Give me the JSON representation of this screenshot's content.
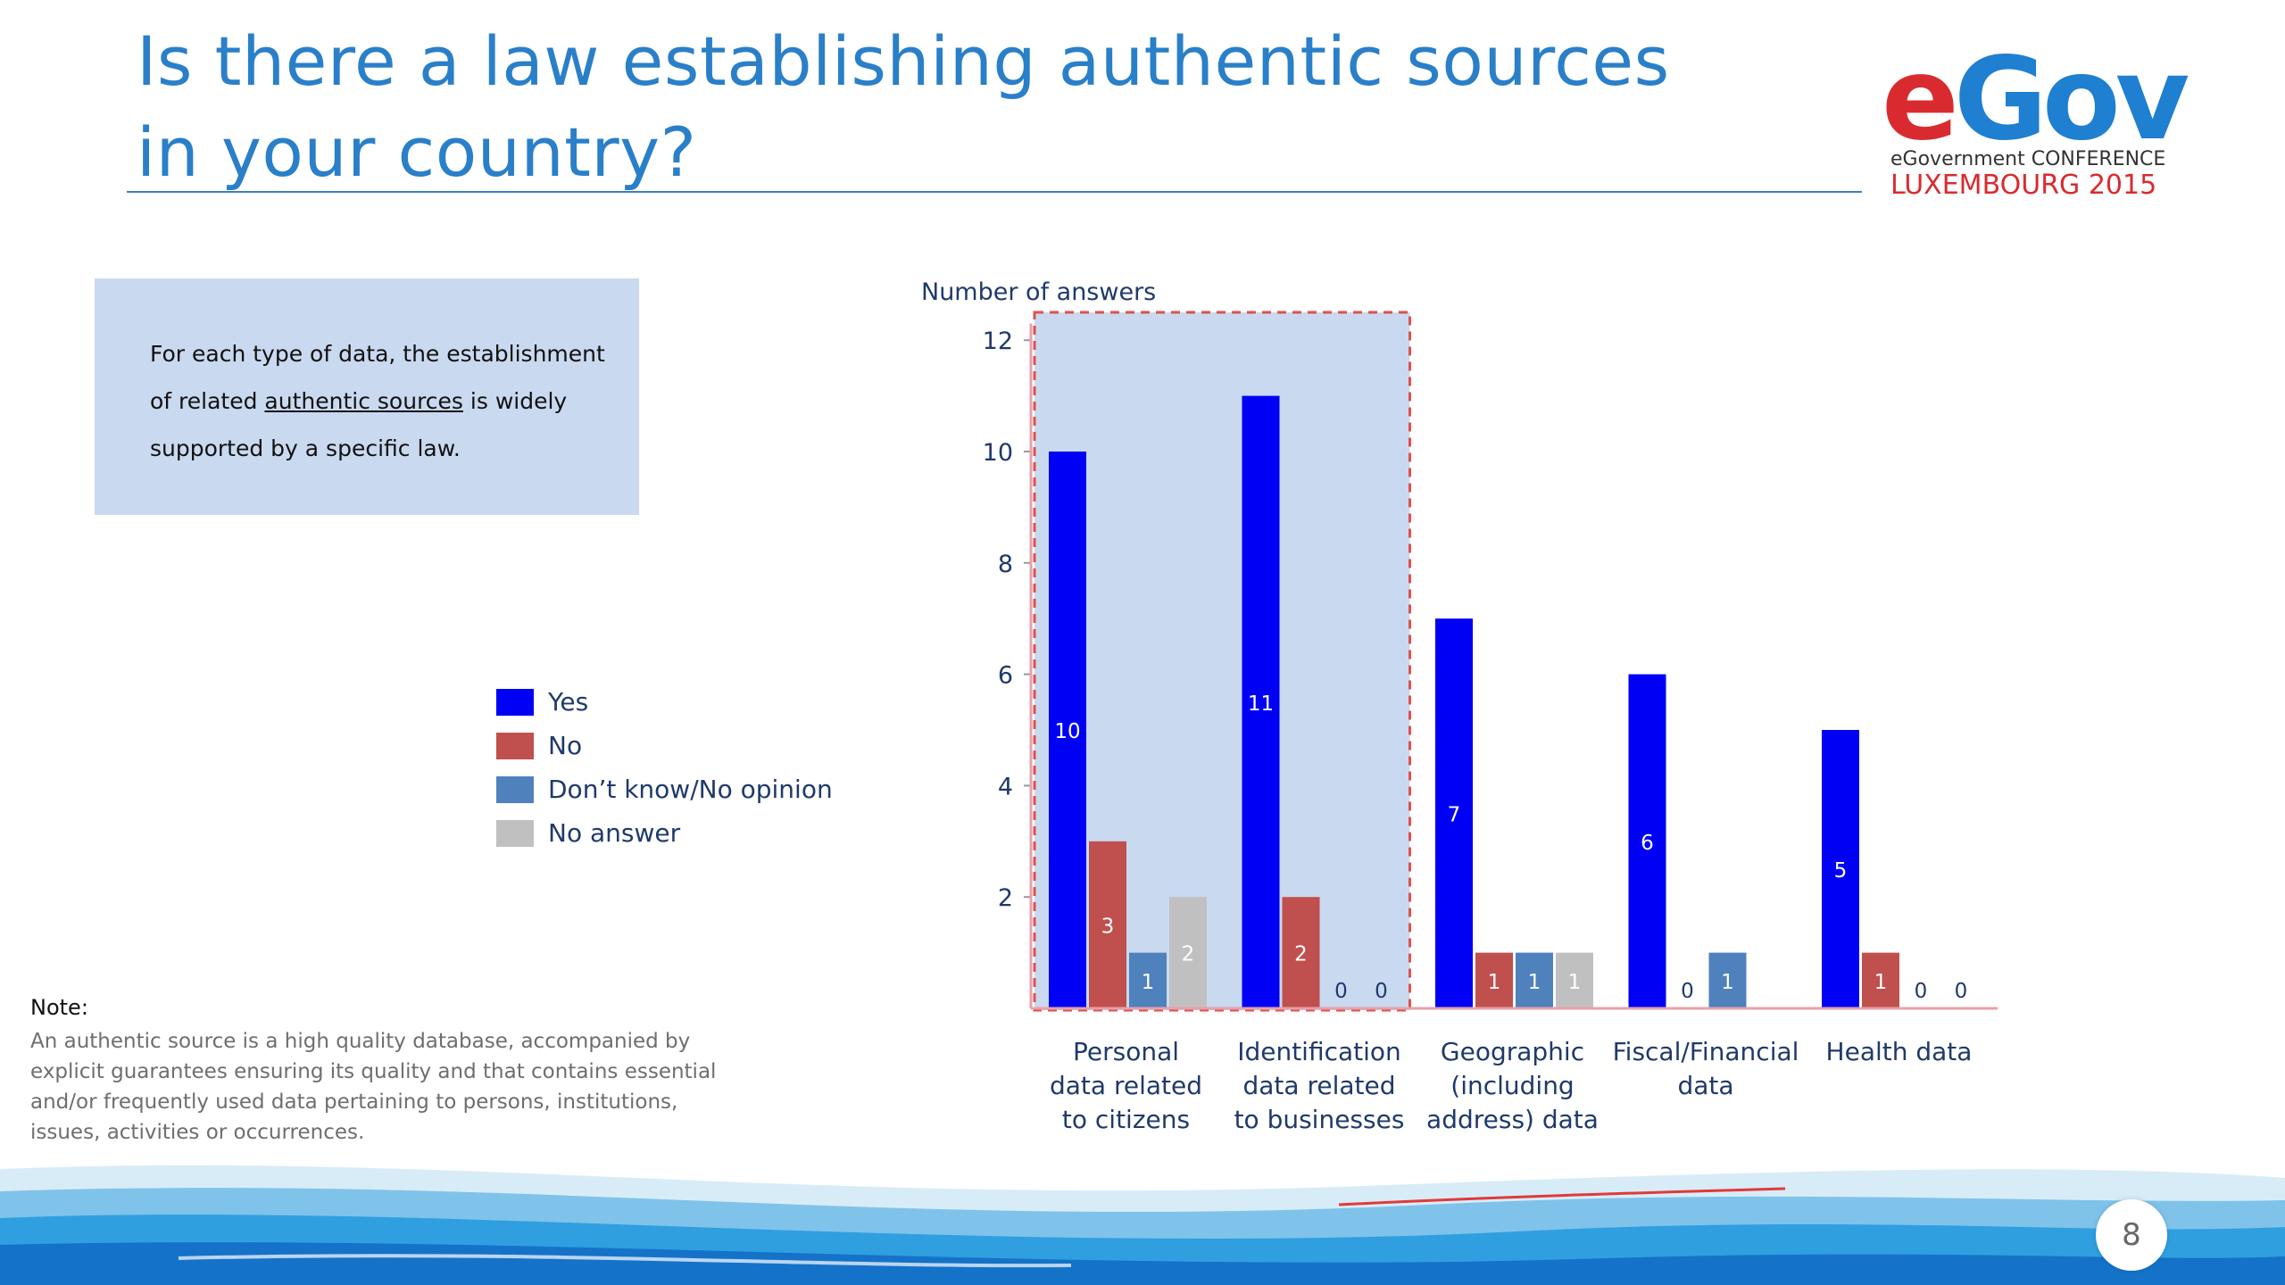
{
  "slide": {
    "title_line1": "Is there a law establishing authentic sources",
    "title_line2": "in your country?",
    "page_number": "8"
  },
  "logo": {
    "e": "e",
    "gov": "Gov",
    "subtitle": "eGovernment CONFERENCE",
    "event": "LUXEMBOURG 2015"
  },
  "info_box": {
    "text_before": "For each type of  data, the establishment of related ",
    "text_link": "authentic sources",
    "text_after": " is widely supported by a specific law."
  },
  "note": {
    "heading": "Note:",
    "text": "An authentic source is a high quality database, accompanied by explicit guarantees ensuring its quality  and that contains essential and/or frequently used data pertaining to persons, institutions, issues, activities or occurrences."
  },
  "colors": {
    "yes": "#0000f5",
    "no": "#c0504d",
    "dont_know": "#4f81bd",
    "no_answer": "#c0c0c0",
    "highlight_fill": "#c9d9f0",
    "highlight_border": "#e05050",
    "axis": "#e8a0a8"
  },
  "chart_data": {
    "type": "bar",
    "ylabel": "Number of answers",
    "ylim": [
      0,
      12
    ],
    "yticks": [
      2,
      4,
      6,
      8,
      10,
      12
    ],
    "legend_position": "left",
    "categories": [
      [
        "Personal",
        "data related",
        "to citizens"
      ],
      [
        "Identification",
        "data related",
        "to businesses"
      ],
      [
        "Geographic",
        "(including",
        "address) data"
      ],
      [
        "Fiscal/Financial",
        "data"
      ],
      [
        "Health data"
      ]
    ],
    "series": [
      {
        "name": "Yes",
        "color_key": "yes",
        "values": [
          10,
          11,
          7,
          6,
          5
        ],
        "labels": [
          "10",
          "11",
          "7",
          "6",
          "5"
        ]
      },
      {
        "name": "No",
        "color_key": "no",
        "values": [
          3,
          2,
          1,
          0,
          1
        ],
        "labels": [
          "3",
          "2",
          "1",
          "0",
          "1"
        ]
      },
      {
        "name": "Don’t know/No opinion",
        "color_key": "dont_know",
        "values": [
          1,
          0,
          1,
          1,
          0
        ],
        "labels": [
          "1",
          "0",
          "1",
          "1",
          "0"
        ]
      },
      {
        "name": "No answer",
        "color_key": "no_answer",
        "values": [
          2,
          0,
          1,
          0,
          0
        ],
        "labels": [
          "2",
          "0",
          "1",
          "",
          "0"
        ]
      }
    ],
    "highlighted_categories": [
      0,
      1
    ]
  }
}
